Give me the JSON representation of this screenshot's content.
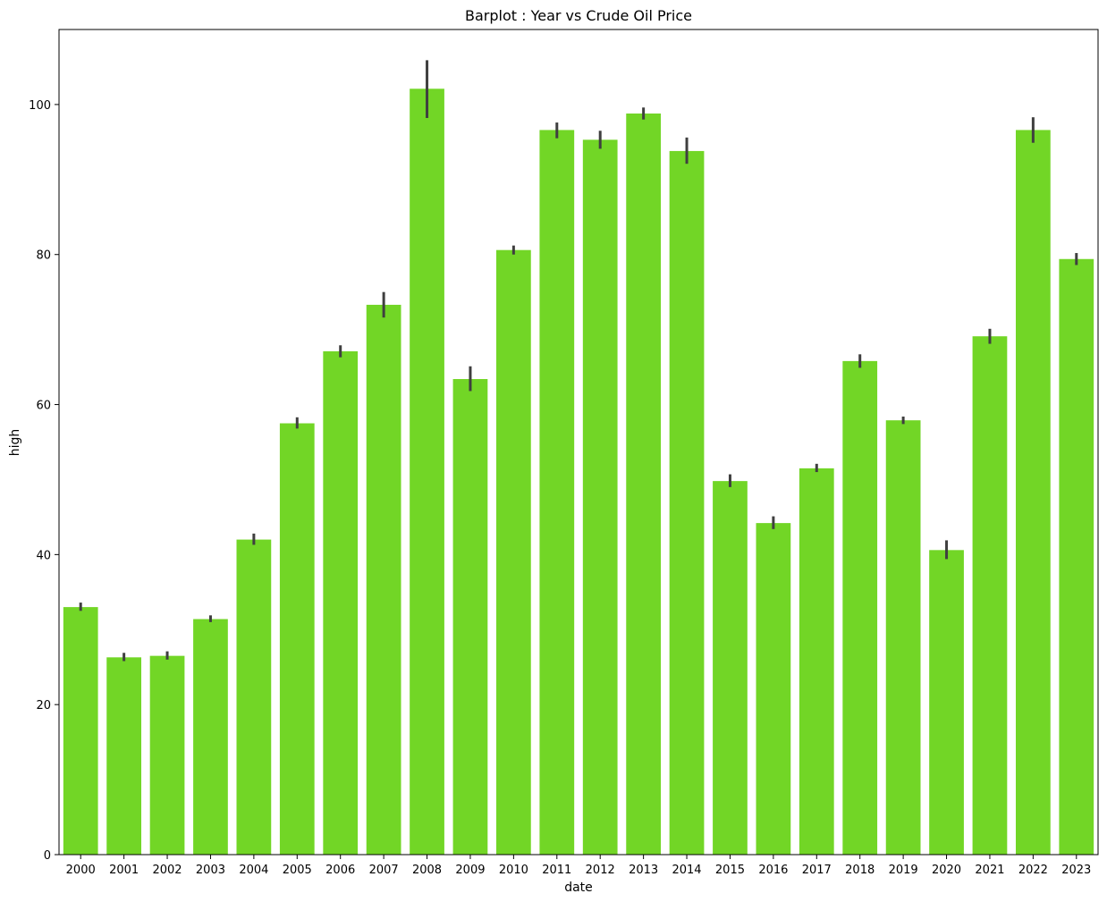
{
  "chart_data": {
    "type": "bar",
    "title": "Barplot : Year vs Crude Oil Price",
    "xlabel": "date",
    "ylabel": "high",
    "categories": [
      "2000",
      "2001",
      "2002",
      "2003",
      "2004",
      "2005",
      "2006",
      "2007",
      "2008",
      "2009",
      "2010",
      "2011",
      "2012",
      "2013",
      "2014",
      "2015",
      "2016",
      "2017",
      "2018",
      "2019",
      "2020",
      "2021",
      "2022",
      "2023"
    ],
    "values": [
      33.0,
      26.3,
      26.5,
      31.4,
      42.0,
      57.5,
      67.1,
      73.3,
      102.1,
      63.4,
      80.6,
      96.6,
      95.3,
      98.8,
      93.8,
      49.8,
      44.2,
      51.5,
      65.8,
      57.9,
      40.6,
      69.1,
      96.6,
      79.4
    ],
    "error_bars": [
      [
        32.5,
        33.6
      ],
      [
        25.8,
        26.9
      ],
      [
        26.0,
        27.1
      ],
      [
        31.0,
        31.9
      ],
      [
        41.3,
        42.8
      ],
      [
        56.8,
        58.3
      ],
      [
        66.3,
        67.9
      ],
      [
        71.6,
        75.0
      ],
      [
        98.2,
        105.9
      ],
      [
        61.8,
        65.1
      ],
      [
        80.0,
        81.2
      ],
      [
        95.5,
        97.6
      ],
      [
        94.1,
        96.5
      ],
      [
        98.0,
        99.6
      ],
      [
        92.1,
        95.6
      ],
      [
        49.0,
        50.7
      ],
      [
        43.4,
        45.1
      ],
      [
        51.0,
        52.1
      ],
      [
        64.9,
        66.7
      ],
      [
        57.4,
        58.4
      ],
      [
        39.4,
        41.9
      ],
      [
        68.1,
        70.1
      ],
      [
        94.9,
        98.3
      ],
      [
        78.6,
        80.2
      ]
    ],
    "ylim": [
      0,
      110
    ],
    "yticks": [
      0,
      20,
      40,
      60,
      80,
      100
    ],
    "grid": false,
    "colors": {
      "bar": "#72d626",
      "errorbar": "#3f3f3f"
    }
  }
}
